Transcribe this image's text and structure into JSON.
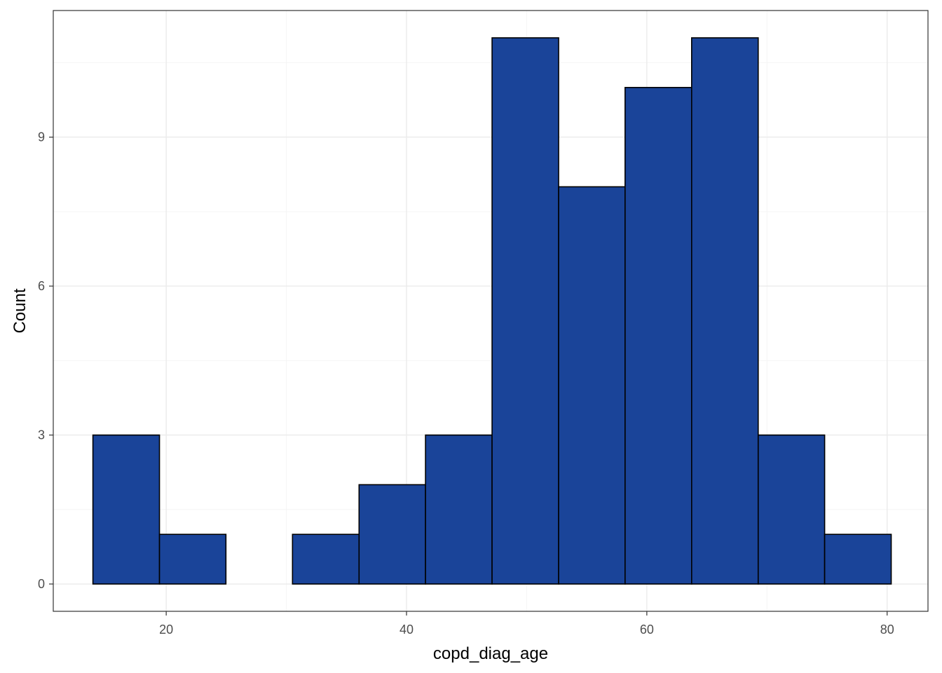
{
  "chart_data": {
    "type": "bar",
    "subtype": "histogram",
    "title": "",
    "xlabel": "copd_diag_age",
    "ylabel": "Count",
    "xlim": [
      10.6,
      83.4
    ],
    "ylim": [
      -0.55,
      11.55
    ],
    "x_ticks": [
      20,
      40,
      60,
      80
    ],
    "y_ticks": [
      0,
      3,
      6,
      9
    ],
    "x_tick_labels": [
      "20",
      "40",
      "60",
      "80"
    ],
    "y_tick_labels": [
      "0",
      "3",
      "6",
      "9"
    ],
    "bin_edges": [
      13.9,
      19.44,
      24.97,
      30.51,
      36.05,
      41.58,
      47.12,
      52.66,
      58.19,
      63.73,
      69.27,
      74.8,
      80.34
    ],
    "values": [
      3,
      1,
      0,
      1,
      2,
      3,
      11,
      8,
      10,
      11,
      3,
      1
    ],
    "grid": true,
    "legend": "none",
    "colors": {
      "bar_fill": "#1a4499",
      "bar_stroke": "#000000",
      "grid_major": "#ebebeb",
      "grid_minor": "#f5f5f5",
      "panel_border": "#333333",
      "background": "#ffffff"
    }
  }
}
